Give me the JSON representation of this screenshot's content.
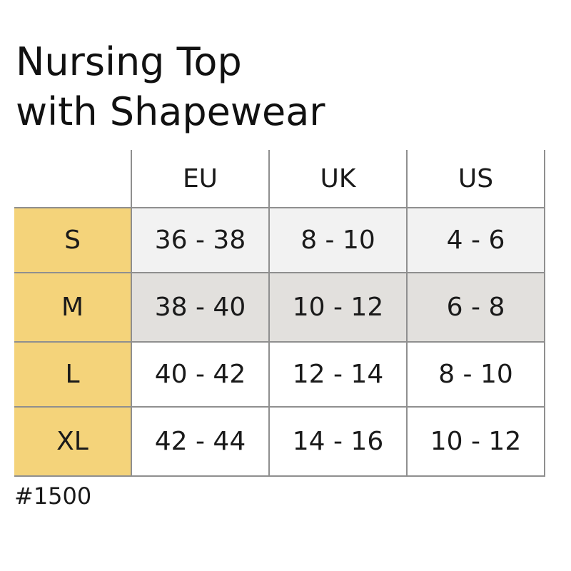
{
  "title": {
    "line1": "Nursing Top",
    "line2": "with Shapewear"
  },
  "table": {
    "columns": [
      "EU",
      "UK",
      "US"
    ],
    "rows": [
      {
        "size": "S",
        "eu": "36 - 38",
        "uk": "8 - 10",
        "us": "4 - 6"
      },
      {
        "size": "M",
        "eu": "38 - 40",
        "uk": "10 - 12",
        "us": "6 - 8"
      },
      {
        "size": "L",
        "eu": "40 - 42",
        "uk": "12 - 14",
        "us": "8 - 10"
      },
      {
        "size": "XL",
        "eu": "42 - 44",
        "uk": "14 - 16",
        "us": "10 - 12"
      }
    ]
  },
  "product_code": "#1500",
  "colors": {
    "size_column": "#f4d37a",
    "row_s": "#f2f2f2",
    "row_m": "#e2e0dd",
    "grid_lines": "#8f8f8f"
  }
}
